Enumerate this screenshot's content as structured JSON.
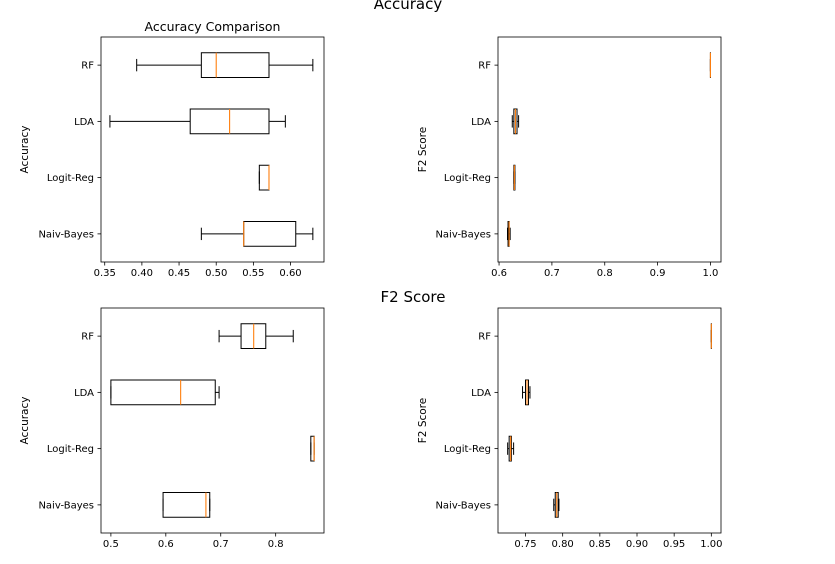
{
  "figure": {
    "suptitle_top": "Accuracy",
    "suptitle_mid": "F2 Score",
    "colors": {
      "box": "#000000",
      "median": "#ff7f0e",
      "background": "#ffffff"
    }
  },
  "chart_data": [
    {
      "type": "boxplot",
      "title": "Accuracy Comparison",
      "ylabel": "Accuracy",
      "xlabel": "",
      "orientation": "horizontal",
      "categories": [
        "Naiv-Bayes",
        "Logit-Reg",
        "LDA",
        "RF"
      ],
      "xlim": [
        0.345,
        0.645
      ],
      "xticks": [
        0.35,
        0.4,
        0.45,
        0.5,
        0.55,
        0.6
      ],
      "xtick_labels": [
        "0.35",
        "0.40",
        "0.45",
        "0.50",
        "0.55",
        "0.60"
      ],
      "boxes": [
        {
          "label": "Naiv-Bayes",
          "min": 0.48,
          "q1": 0.537,
          "median": 0.537,
          "q3": 0.607,
          "max": 0.63
        },
        {
          "label": "Logit-Reg",
          "min": 0.558,
          "q1": 0.558,
          "median": 0.571,
          "q3": 0.571,
          "max": 0.571
        },
        {
          "label": "LDA",
          "min": 0.357,
          "q1": 0.465,
          "median": 0.518,
          "q3": 0.571,
          "max": 0.593
        },
        {
          "label": "RF",
          "min": 0.393,
          "q1": 0.48,
          "median": 0.5,
          "q3": 0.571,
          "max": 0.63
        }
      ]
    },
    {
      "type": "boxplot",
      "title": "",
      "ylabel": "F2 Score",
      "xlabel": "",
      "orientation": "horizontal",
      "categories": [
        "Naiv-Bayes",
        "Logit-Reg",
        "LDA",
        "RF"
      ],
      "xlim": [
        0.598,
        1.02
      ],
      "xticks": [
        0.6,
        0.7,
        0.8,
        0.9,
        1.0
      ],
      "xtick_labels": [
        "0.6",
        "0.7",
        "0.8",
        "0.9",
        "1.0"
      ],
      "boxes": [
        {
          "label": "Naiv-Bayes",
          "min": 0.616,
          "q1": 0.617,
          "median": 0.619,
          "q3": 0.619,
          "max": 0.621
        },
        {
          "label": "Logit-Reg",
          "min": 0.628,
          "q1": 0.628,
          "median": 0.629,
          "q3": 0.63,
          "max": 0.63
        },
        {
          "label": "LDA",
          "min": 0.625,
          "q1": 0.628,
          "median": 0.631,
          "q3": 0.634,
          "max": 0.637
        },
        {
          "label": "RF",
          "min": 1.0,
          "q1": 1.0,
          "median": 1.0,
          "q3": 1.0,
          "max": 1.0
        }
      ]
    },
    {
      "type": "boxplot",
      "title": "",
      "ylabel": "Accuracy",
      "xlabel": "",
      "orientation": "horizontal",
      "categories": [
        "Naiv-Bayes",
        "Logit-Reg",
        "LDA",
        "RF"
      ],
      "xlim": [
        0.482,
        0.888
      ],
      "xticks": [
        0.5,
        0.6,
        0.7,
        0.8
      ],
      "xtick_labels": [
        "0.5",
        "0.6",
        "0.7",
        "0.8"
      ],
      "boxes": [
        {
          "label": "Naiv-Bayes",
          "min": 0.595,
          "q1": 0.595,
          "median": 0.673,
          "q3": 0.68,
          "max": 0.68
        },
        {
          "label": "Logit-Reg",
          "min": 0.864,
          "q1": 0.864,
          "median": 0.87,
          "q3": 0.87,
          "max": 0.87
        },
        {
          "label": "LDA",
          "min": 0.5,
          "q1": 0.5,
          "median": 0.627,
          "q3": 0.69,
          "max": 0.697
        },
        {
          "label": "RF",
          "min": 0.697,
          "q1": 0.737,
          "median": 0.76,
          "q3": 0.782,
          "max": 0.832
        }
      ]
    },
    {
      "type": "boxplot",
      "title": "",
      "ylabel": "F2 Score",
      "xlabel": "",
      "orientation": "horizontal",
      "categories": [
        "Naiv-Bayes",
        "Logit-Reg",
        "LDA",
        "RF"
      ],
      "xlim": [
        0.713,
        1.013
      ],
      "xticks": [
        0.75,
        0.8,
        0.85,
        0.9,
        0.95,
        1.0
      ],
      "xtick_labels": [
        "0.75",
        "0.80",
        "0.85",
        "0.90",
        "0.95",
        "1.00"
      ],
      "boxes": [
        {
          "label": "Naiv-Bayes",
          "min": 0.788,
          "q1": 0.79,
          "median": 0.792,
          "q3": 0.794,
          "max": 0.795
        },
        {
          "label": "Logit-Reg",
          "min": 0.726,
          "q1": 0.728,
          "median": 0.73,
          "q3": 0.731,
          "max": 0.734
        },
        {
          "label": "LDA",
          "min": 0.746,
          "q1": 0.75,
          "median": 0.752,
          "q3": 0.754,
          "max": 0.756
        },
        {
          "label": "RF",
          "min": 1.0,
          "q1": 1.0,
          "median": 1.0,
          "q3": 1.0,
          "max": 1.0
        }
      ]
    }
  ]
}
